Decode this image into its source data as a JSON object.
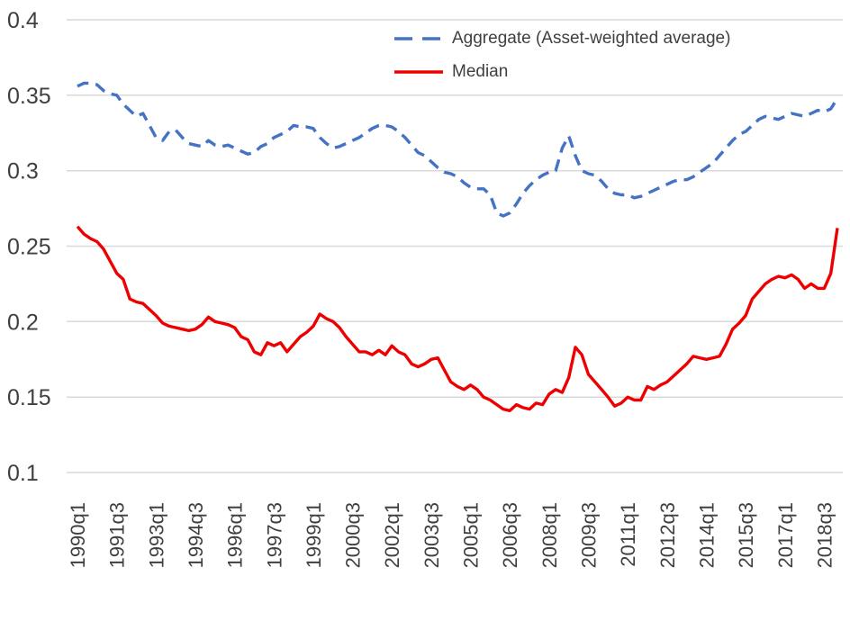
{
  "chart_data": {
    "type": "line",
    "title": "",
    "xlabel": "",
    "ylabel": "",
    "ylim": [
      0.1,
      0.4
    ],
    "yticks": [
      0.1,
      0.15,
      0.2,
      0.25,
      0.3,
      0.35,
      0.4
    ],
    "grid": "horizontal",
    "grid_color": "#d9d9d9",
    "axis_label_color": "#404040",
    "background": "#ffffff",
    "legend_position": "top-center-inside",
    "n_points": 117,
    "x_start": "1990q1",
    "x_frequency": "quarterly",
    "xtick_indices": [
      0,
      6,
      12,
      18,
      24,
      30,
      36,
      42,
      48,
      54,
      60,
      66,
      72,
      78,
      84,
      90,
      96,
      102,
      108,
      114
    ],
    "xtick_labels": [
      "1990q1",
      "1991q3",
      "1993q1",
      "1994q3",
      "1996q1",
      "1997q3",
      "1999q1",
      "2000q3",
      "2002q1",
      "2003q3",
      "2005q1",
      "2006q3",
      "2008q1",
      "2009q3",
      "2011q1",
      "2012q3",
      "2014q1",
      "2015q3",
      "2017q1",
      "2018q3"
    ],
    "series": [
      {
        "name": "Aggregate (Asset-weighted average)",
        "color": "#4472c4",
        "style": "dashed",
        "values": [
          0.356,
          0.358,
          0.358,
          0.357,
          0.353,
          0.351,
          0.35,
          0.344,
          0.34,
          0.336,
          0.338,
          0.33,
          0.322,
          0.32,
          0.326,
          0.327,
          0.322,
          0.318,
          0.317,
          0.316,
          0.32,
          0.317,
          0.316,
          0.317,
          0.315,
          0.313,
          0.311,
          0.312,
          0.316,
          0.318,
          0.322,
          0.324,
          0.326,
          0.33,
          0.329,
          0.329,
          0.328,
          0.322,
          0.318,
          0.315,
          0.316,
          0.318,
          0.32,
          0.322,
          0.325,
          0.328,
          0.33,
          0.33,
          0.329,
          0.326,
          0.322,
          0.317,
          0.312,
          0.31,
          0.306,
          0.302,
          0.299,
          0.298,
          0.296,
          0.292,
          0.289,
          0.288,
          0.288,
          0.284,
          0.272,
          0.27,
          0.272,
          0.278,
          0.285,
          0.29,
          0.294,
          0.297,
          0.299,
          0.3,
          0.315,
          0.323,
          0.31,
          0.3,
          0.298,
          0.297,
          0.293,
          0.288,
          0.285,
          0.284,
          0.284,
          0.282,
          0.283,
          0.285,
          0.287,
          0.289,
          0.291,
          0.293,
          0.294,
          0.294,
          0.296,
          0.299,
          0.302,
          0.305,
          0.31,
          0.315,
          0.32,
          0.324,
          0.326,
          0.33,
          0.334,
          0.336,
          0.335,
          0.334,
          0.336,
          0.338,
          0.337,
          0.336,
          0.338,
          0.34,
          0.339,
          0.341,
          0.348
        ]
      },
      {
        "name": "Median",
        "color": "#ee0000",
        "style": "solid",
        "values": [
          0.263,
          0.258,
          0.255,
          0.253,
          0.248,
          0.24,
          0.232,
          0.228,
          0.215,
          0.213,
          0.212,
          0.208,
          0.204,
          0.199,
          0.197,
          0.196,
          0.195,
          0.194,
          0.195,
          0.198,
          0.203,
          0.2,
          0.199,
          0.198,
          0.196,
          0.19,
          0.188,
          0.18,
          0.178,
          0.186,
          0.184,
          0.186,
          0.18,
          0.185,
          0.19,
          0.193,
          0.197,
          0.205,
          0.202,
          0.2,
          0.196,
          0.19,
          0.185,
          0.18,
          0.18,
          0.178,
          0.181,
          0.178,
          0.184,
          0.18,
          0.178,
          0.172,
          0.17,
          0.172,
          0.175,
          0.176,
          0.168,
          0.16,
          0.157,
          0.155,
          0.158,
          0.155,
          0.15,
          0.148,
          0.145,
          0.142,
          0.141,
          0.145,
          0.143,
          0.142,
          0.146,
          0.145,
          0.152,
          0.155,
          0.153,
          0.163,
          0.183,
          0.178,
          0.165,
          0.16,
          0.155,
          0.15,
          0.144,
          0.146,
          0.15,
          0.148,
          0.148,
          0.157,
          0.155,
          0.158,
          0.16,
          0.164,
          0.168,
          0.172,
          0.177,
          0.176,
          0.175,
          0.176,
          0.177,
          0.185,
          0.195,
          0.199,
          0.204,
          0.215,
          0.22,
          0.225,
          0.228,
          0.23,
          0.229,
          0.231,
          0.228,
          0.222,
          0.225,
          0.222,
          0.222,
          0.232,
          0.262
        ]
      }
    ]
  }
}
